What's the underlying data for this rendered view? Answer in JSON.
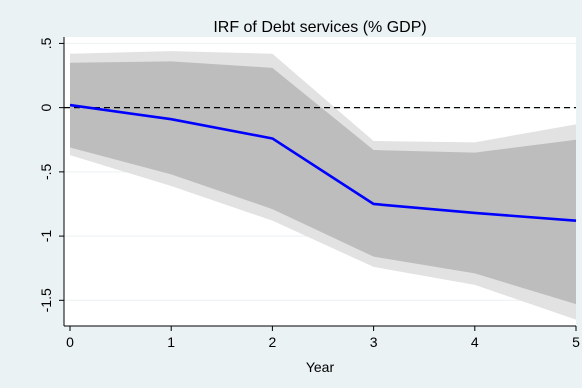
{
  "chart_data": {
    "type": "line",
    "title": "IRF of Debt services (% GDP)",
    "xlabel": "Year",
    "ylabel": "",
    "x": [
      0,
      1,
      2,
      3,
      4,
      5
    ],
    "xlim": [
      0,
      5
    ],
    "ylim": [
      -1.7,
      0.55
    ],
    "yticks": [
      0.5,
      0,
      -0.5,
      -1,
      -1.5
    ],
    "ytick_labels": [
      ".5",
      "0",
      "-.5",
      "-1",
      "-1.5"
    ],
    "xtick_labels": [
      "0",
      "1",
      "2",
      "3",
      "4",
      "5"
    ],
    "zero_line": 0,
    "grid": true,
    "series": [
      {
        "role": "irf",
        "values": [
          0.02,
          -0.09,
          -0.24,
          -0.75,
          -0.82,
          -0.88
        ]
      }
    ],
    "bands": [
      {
        "role": "outer",
        "upper": [
          0.42,
          0.44,
          0.42,
          -0.26,
          -0.27,
          -0.13
        ],
        "lower": [
          -0.37,
          -0.61,
          -0.88,
          -1.24,
          -1.38,
          -1.65
        ]
      },
      {
        "role": "inner",
        "upper": [
          0.35,
          0.36,
          0.31,
          -0.33,
          -0.35,
          -0.25
        ],
        "lower": [
          -0.31,
          -0.52,
          -0.79,
          -1.16,
          -1.29,
          -1.53
        ]
      }
    ],
    "colors": {
      "background": "#eaf2f3",
      "plot_area": "#ffffff",
      "outer_band": "#e2e2e2",
      "inner_band": "#bdbdbd",
      "irf_line": "#0000ff",
      "zero_line": "#000000",
      "grid": "#eaf2f3"
    }
  }
}
